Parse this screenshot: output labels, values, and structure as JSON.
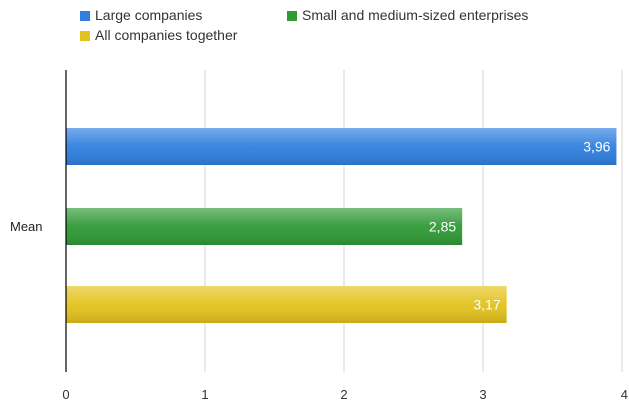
{
  "chart_data": {
    "type": "bar",
    "orientation": "horizontal",
    "categories": [
      "Mean"
    ],
    "series": [
      {
        "name": "Large companies",
        "values": [
          3.96
        ],
        "label": "3,96",
        "color": "#2f7fe0"
      },
      {
        "name": "Small and medium-sized enterprises",
        "values": [
          2.85
        ],
        "label": "2,85",
        "color": "#2f9a36"
      },
      {
        "name": "All companies together",
        "values": [
          3.17
        ],
        "label": "3,17",
        "color": "#e3c21c"
      }
    ],
    "xlim": [
      0,
      4
    ],
    "xticks": [
      {
        "value": 0,
        "label": "0"
      },
      {
        "value": 1,
        "label": "1"
      },
      {
        "value": 2,
        "label": "2"
      },
      {
        "value": 3,
        "label": "3"
      },
      {
        "value": 4,
        "label": "4"
      }
    ],
    "grid": true,
    "legend_position": "top-left"
  }
}
